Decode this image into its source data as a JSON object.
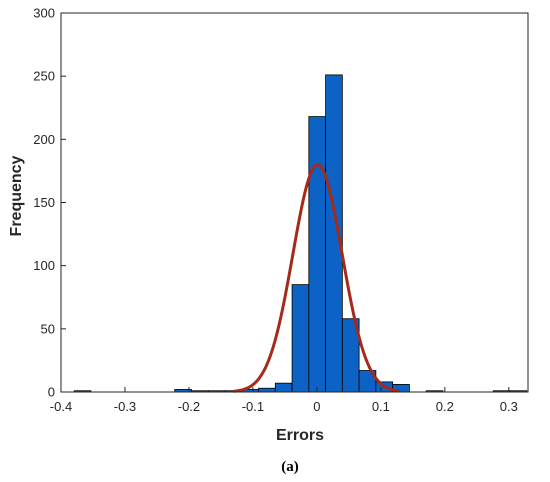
{
  "chart_data": {
    "type": "bar",
    "title": "",
    "xlabel": "Errors",
    "ylabel": "Frequency",
    "caption": "(a)",
    "xlim": [
      -0.4,
      0.33
    ],
    "ylim": [
      0,
      300
    ],
    "xticks": [
      -0.4,
      -0.3,
      -0.2,
      -0.1,
      0,
      0.1,
      0.2,
      0.3
    ],
    "xtick_labels": [
      "-0.4",
      "-0.3",
      "-0.2",
      "-0.1",
      "0",
      "0.1",
      "0.2",
      "0.3"
    ],
    "yticks": [
      0,
      50,
      100,
      150,
      200,
      250,
      300
    ],
    "ytick_labels": [
      "0",
      "50",
      "100",
      "150",
      "200",
      "250",
      "300"
    ],
    "grid": false,
    "bin_width": 0.0262,
    "bins": [
      {
        "x0": -0.3794,
        "count": 1
      },
      {
        "x0": -0.2222,
        "count": 2
      },
      {
        "x0": -0.196,
        "count": 1
      },
      {
        "x0": -0.1698,
        "count": 1
      },
      {
        "x0": -0.1436,
        "count": 1
      },
      {
        "x0": -0.1174,
        "count": 2
      },
      {
        "x0": -0.0912,
        "count": 3
      },
      {
        "x0": -0.065,
        "count": 7
      },
      {
        "x0": -0.0388,
        "count": 85
      },
      {
        "x0": -0.0126,
        "count": 218
      },
      {
        "x0": 0.0136,
        "count": 251
      },
      {
        "x0": 0.0398,
        "count": 58
      },
      {
        "x0": 0.066,
        "count": 17
      },
      {
        "x0": 0.0922,
        "count": 8
      },
      {
        "x0": 0.1184,
        "count": 6
      },
      {
        "x0": 0.1708,
        "count": 1
      },
      {
        "x0": 0.2756,
        "count": 1
      },
      {
        "x0": 0.3018,
        "count": 1
      }
    ],
    "fit_curve": {
      "type": "normal",
      "mean": 0.001,
      "std": 0.0385,
      "peak": 180,
      "x_range": [
        -0.13,
        0.13
      ]
    },
    "colors": {
      "bar": "#0c62c5",
      "bar_edge": "#000000",
      "curve": "#a52a1a",
      "axis": "#262626"
    }
  }
}
